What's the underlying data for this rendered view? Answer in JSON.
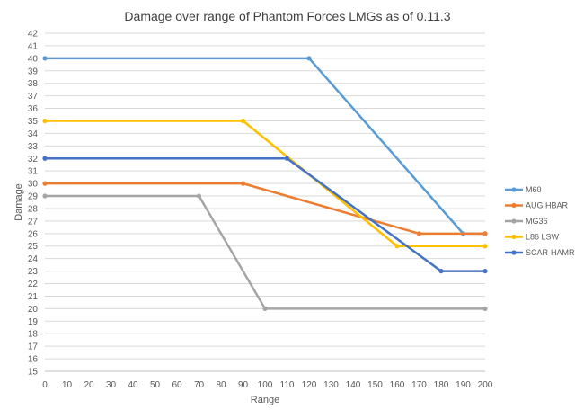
{
  "chart_data": {
    "type": "line",
    "title": "Damage over range of Phantom Forces LMGs as of 0.11.3",
    "xlabel": "Range",
    "ylabel": "Damage",
    "xlim": [
      0,
      200
    ],
    "ylim": [
      15,
      42
    ],
    "x_ticks": [
      "0",
      "10",
      "20",
      "30",
      "40",
      "50",
      "60",
      "70",
      "80",
      "90",
      "100",
      "110",
      "120",
      "130",
      "140",
      "150",
      "160",
      "170",
      "180",
      "190",
      "200"
    ],
    "y_ticks": [
      "15",
      "16",
      "17",
      "18",
      "19",
      "20",
      "21",
      "22",
      "23",
      "24",
      "25",
      "26",
      "27",
      "28",
      "29",
      "30",
      "31",
      "32",
      "33",
      "34",
      "35",
      "36",
      "37",
      "38",
      "39",
      "40",
      "41",
      "42"
    ],
    "grid": "horizontal",
    "legend_position": "right",
    "series": [
      {
        "name": "M60",
        "color": "#5B9BD5",
        "points": [
          [
            0,
            40
          ],
          [
            120,
            40
          ],
          [
            190,
            26
          ],
          [
            200,
            26
          ]
        ]
      },
      {
        "name": "AUG HBAR",
        "color": "#ED7D31",
        "points": [
          [
            0,
            30
          ],
          [
            90,
            30
          ],
          [
            170,
            26
          ],
          [
            200,
            26
          ]
        ]
      },
      {
        "name": "MG36",
        "color": "#A5A5A5",
        "points": [
          [
            0,
            29
          ],
          [
            70,
            29
          ],
          [
            100,
            20
          ],
          [
            200,
            20
          ]
        ]
      },
      {
        "name": "L86 LSW",
        "color": "#FFC000",
        "points": [
          [
            0,
            35
          ],
          [
            90,
            35
          ],
          [
            160,
            25
          ],
          [
            200,
            25
          ]
        ]
      },
      {
        "name": "SCAR-HAMR",
        "color": "#4472C4",
        "points": [
          [
            0,
            32
          ],
          [
            110,
            32
          ],
          [
            180,
            23
          ],
          [
            200,
            23
          ]
        ]
      }
    ]
  }
}
